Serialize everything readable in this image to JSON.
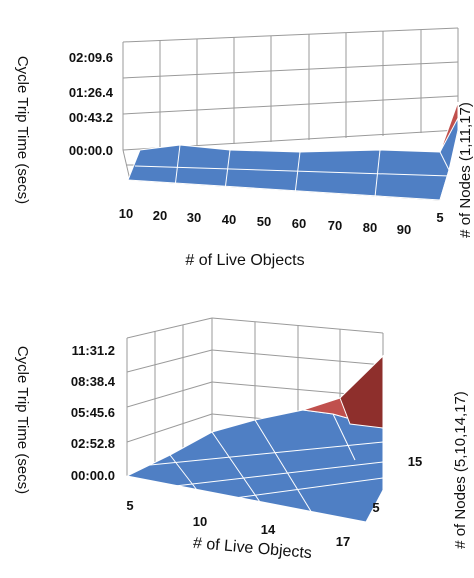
{
  "chart_data": [
    {
      "type": "surface",
      "title": "",
      "xlabel": "# of Live Objects",
      "ylabel": "Cycle Trip Time (secs)",
      "zlabel": "# of Nodes (1,11,17)",
      "x_ticks": [
        "10",
        "20",
        "30",
        "40",
        "50",
        "60",
        "70",
        "80",
        "90"
      ],
      "depth_ticks": [
        "5"
      ],
      "y_ticks": [
        "00:00.0",
        "00:43.2",
        "01:26.4",
        "02:09.6"
      ],
      "y_ticks_seconds": [
        0,
        43.2,
        86.4,
        129.6
      ],
      "ylim_seconds": [
        0,
        129.6
      ],
      "depth_values": [
        1,
        11,
        17
      ],
      "surface_seconds": [
        [
          5,
          8,
          6,
          5,
          5,
          5,
          6,
          8,
          10
        ],
        [
          6,
          12,
          15,
          10,
          8,
          9,
          11,
          14,
          38
        ],
        [
          5,
          10,
          12,
          9,
          7,
          8,
          10,
          15,
          75
        ]
      ],
      "bands": [
        {
          "range_seconds": [
            0,
            43.2
          ],
          "color": "#4f7fc4"
        },
        {
          "range_seconds": [
            43.2,
            86.4
          ],
          "color": "#c0504d"
        }
      ],
      "grid": true
    },
    {
      "type": "surface",
      "title": "",
      "xlabel": "# of Live Objects",
      "ylabel": "Cycle Trip Time (secs)",
      "zlabel": "# of Nodes (5,10,14,17)",
      "x_ticks": [
        "5",
        "10",
        "14",
        "17"
      ],
      "depth_ticks": [
        "5",
        "15"
      ],
      "y_ticks": [
        "00:00.0",
        "02:52.8",
        "05:45.6",
        "08:38.4",
        "11:31.2"
      ],
      "y_ticks_seconds": [
        0,
        172.8,
        345.6,
        518.4,
        691.2
      ],
      "ylim_seconds": [
        0,
        691.2
      ],
      "x_values": [
        5,
        10,
        14,
        17
      ],
      "depth_values": [
        5,
        10,
        14,
        17
      ],
      "surface_seconds": [
        [
          2,
          5,
          10,
          18
        ],
        [
          10,
          40,
          90,
          160
        ],
        [
          30,
          110,
          230,
          420
        ],
        [
          60,
          200,
          360,
          650
        ]
      ],
      "bands": [
        {
          "range_seconds": [
            0,
            345.6
          ],
          "color": "#4f7fc4"
        },
        {
          "range_seconds": [
            345.6,
            518.4
          ],
          "color": "#c0504d"
        },
        {
          "range_seconds": [
            518.4,
            691.2
          ],
          "color": "#9bbb59"
        }
      ],
      "grid": true
    }
  ]
}
